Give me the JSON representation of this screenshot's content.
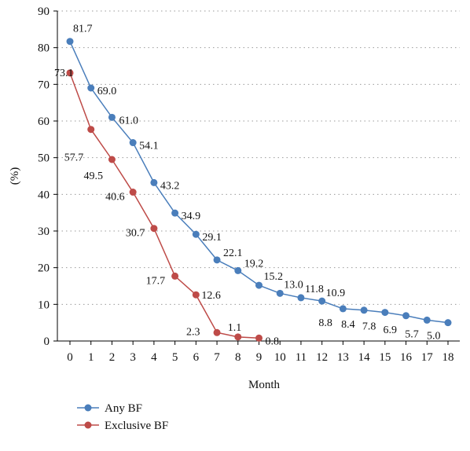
{
  "chart_data": {
    "type": "line",
    "title": "",
    "xlabel": "Month",
    "ylabel": "(%)",
    "x": [
      0,
      1,
      2,
      3,
      4,
      5,
      6,
      7,
      8,
      9,
      10,
      11,
      12,
      13,
      14,
      15,
      16,
      17,
      18
    ],
    "xticks": [
      "0",
      "1",
      "2",
      "3",
      "4",
      "5",
      "6",
      "7",
      "8",
      "9",
      "10",
      "11",
      "12",
      "13",
      "14",
      "15",
      "16",
      "17",
      "18"
    ],
    "ylim": [
      0,
      90
    ],
    "yticks": [
      "0",
      "10",
      "20",
      "30",
      "40",
      "50",
      "60",
      "70",
      "80",
      "90"
    ],
    "grid": "horizontal dotted",
    "legend_position": "bottom-left",
    "series": [
      {
        "name": "Any BF",
        "color": "#4a7ebb",
        "x": [
          0,
          1,
          2,
          3,
          4,
          5,
          6,
          7,
          8,
          9,
          10,
          11,
          12,
          13,
          14,
          15,
          16,
          17,
          18
        ],
        "values": [
          81.7,
          69.0,
          61.0,
          54.1,
          43.2,
          34.9,
          29.1,
          22.1,
          19.2,
          15.2,
          13.0,
          11.8,
          10.9,
          8.8,
          8.4,
          7.8,
          6.9,
          5.7,
          5.0
        ],
        "labels": [
          "81.7",
          "69.0",
          "61.0",
          "54.1",
          "43.2",
          "34.9",
          "29.1",
          "22.1",
          "19.2",
          "15.2",
          "13.0",
          "11.8",
          "10.9",
          "8.8",
          "8.4",
          "7.8",
          "6.9",
          "5.7",
          "5.0"
        ]
      },
      {
        "name": "Exclusive BF",
        "color": "#be4b48",
        "x": [
          0,
          1,
          2,
          3,
          4,
          5,
          6,
          7,
          8,
          9
        ],
        "values": [
          73.1,
          57.7,
          49.5,
          40.6,
          30.7,
          17.7,
          12.6,
          2.3,
          1.1,
          0.8
        ],
        "labels": [
          "73.1",
          "57.7",
          "49.5",
          "40.6",
          "30.7",
          "17.7",
          "12.6",
          "2.3",
          "1.1",
          "0.8"
        ]
      }
    ]
  }
}
